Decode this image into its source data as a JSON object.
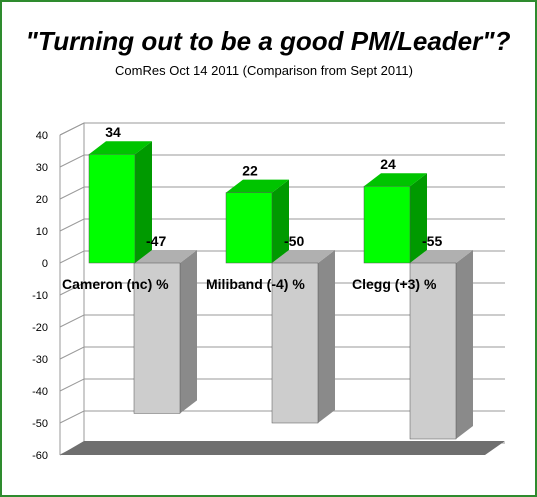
{
  "chart_data": {
    "type": "bar",
    "title": "\"Turning out to be a good PM/Leader\"?",
    "subtitle": "ComRes Oct 14 2011 (Comparison from Sept 2011)",
    "categories": [
      "Cameron (nc)  %",
      "Miliband (-4) %",
      "Clegg (+3) %"
    ],
    "series": [
      {
        "values": [
          34,
          22,
          24
        ]
      },
      {
        "values": [
          -47,
          -50,
          -55
        ]
      }
    ],
    "ylim": [
      -60,
      40
    ],
    "yticks": [
      40,
      30,
      20,
      10,
      0,
      -10,
      -20,
      -30,
      -40,
      -50,
      -60
    ],
    "grid": true,
    "xlabel": "",
    "ylabel": ""
  },
  "colors": {
    "positive_front": "#00ff00",
    "positive_side": "#009a00",
    "positive_top": "#00c400",
    "negative_front": "#cdcdcd",
    "negative_side": "#8a8a8a",
    "negative_top": "#b0b0b0",
    "frame_border": "#2e8b2e",
    "grid": "#9a9a9a",
    "floor": "#6f6f6f"
  }
}
